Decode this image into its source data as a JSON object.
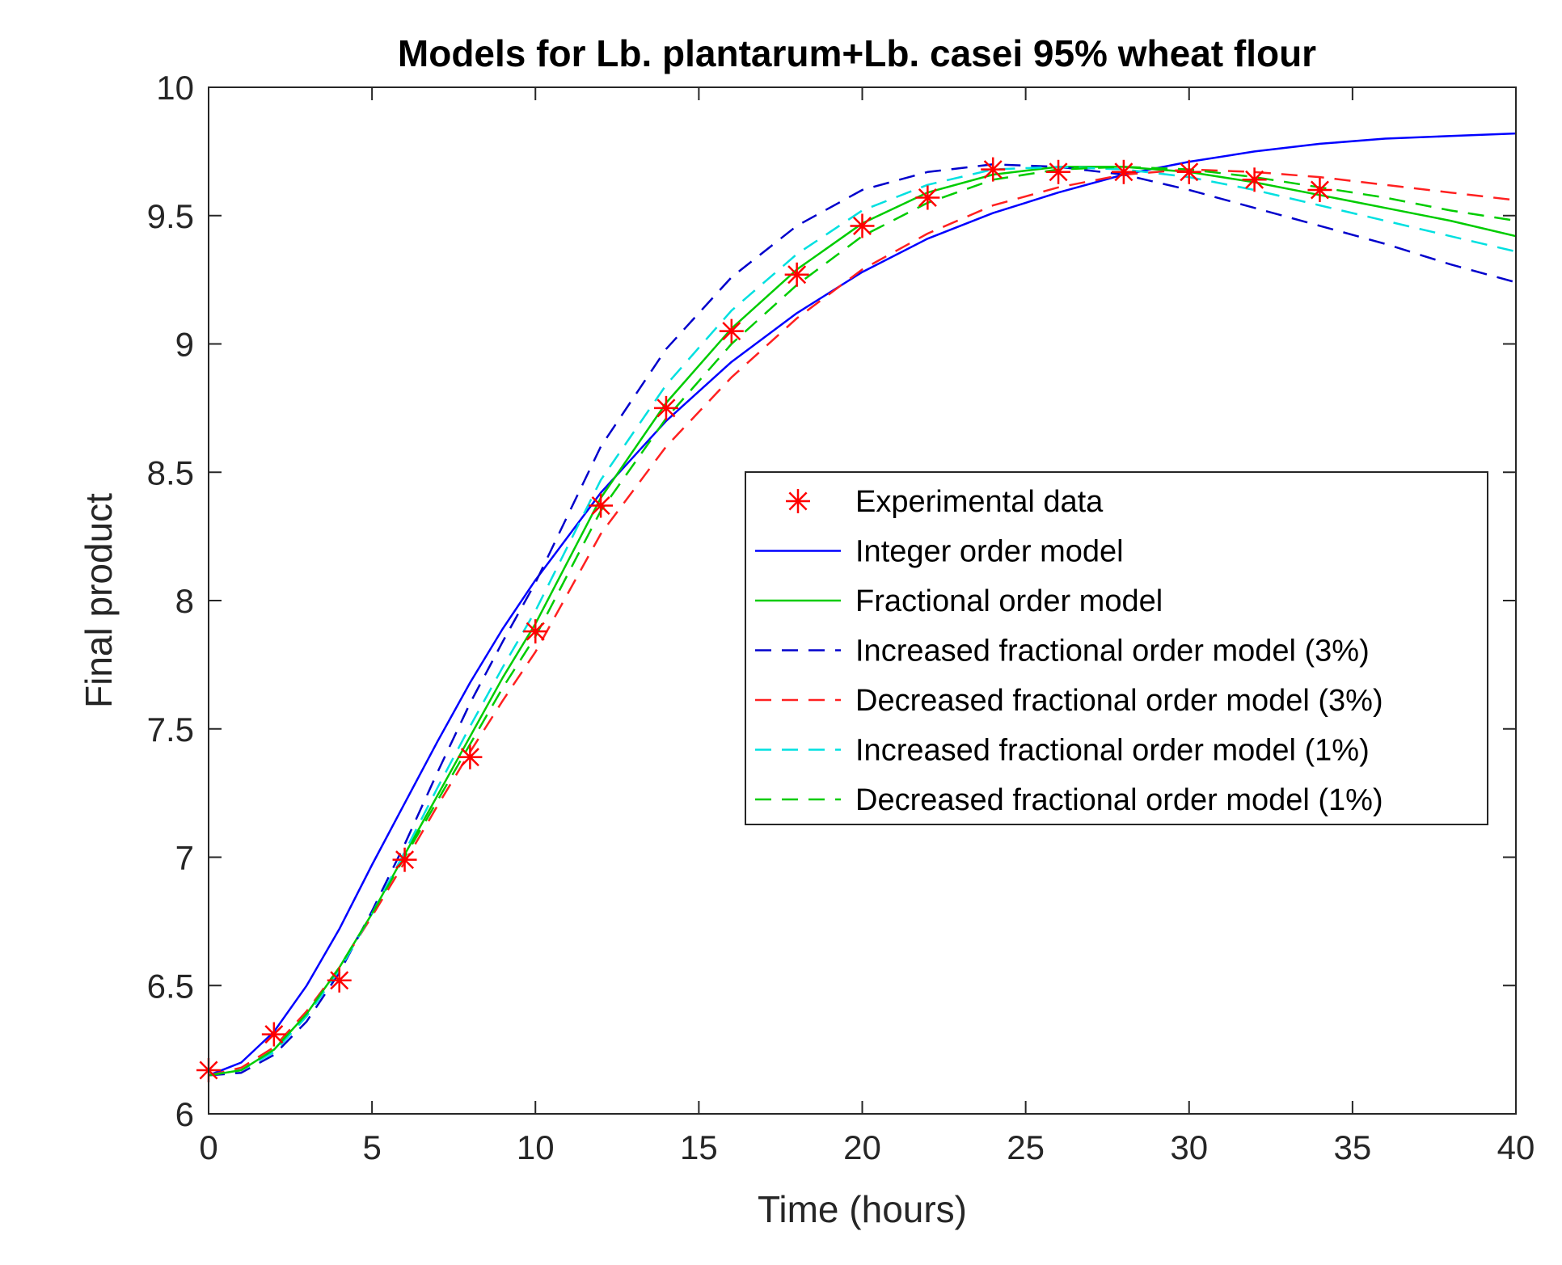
{
  "chart_data": {
    "type": "line",
    "title": "Models for Lb. plantarum+Lb. casei 95% wheat flour",
    "xlabel": "Time (hours)",
    "ylabel": "Final product",
    "xlim": [
      0,
      40
    ],
    "ylim": [
      6,
      10
    ],
    "xticks": [
      0,
      5,
      10,
      15,
      20,
      25,
      30,
      35,
      40
    ],
    "yticks": [
      6,
      6.5,
      7,
      7.5,
      8,
      8.5,
      9,
      9.5,
      10
    ],
    "legend_position": "center-right",
    "series": [
      {
        "name": "Experimental data",
        "style": "markers",
        "marker": "asterisk",
        "color": "#ff0000",
        "x": [
          0,
          2,
          4,
          6,
          8,
          10,
          12,
          14,
          16,
          18,
          20,
          22,
          24,
          26,
          28,
          30,
          32,
          34
        ],
        "y": [
          6.17,
          6.31,
          6.52,
          6.99,
          7.39,
          7.88,
          8.37,
          8.75,
          9.05,
          9.27,
          9.46,
          9.57,
          9.68,
          9.67,
          9.67,
          9.67,
          9.64,
          9.6
        ]
      },
      {
        "name": "Integer order model",
        "style": "solid",
        "color": "#0000ff",
        "x": [
          0,
          1,
          2,
          3,
          4,
          5,
          6,
          7,
          8,
          9,
          10,
          12,
          14,
          16,
          18,
          20,
          22,
          24,
          26,
          28,
          30,
          32,
          34,
          36,
          38,
          40
        ],
        "y": [
          6.15,
          6.2,
          6.32,
          6.5,
          6.72,
          6.97,
          7.21,
          7.45,
          7.68,
          7.89,
          8.08,
          8.42,
          8.7,
          8.93,
          9.12,
          9.28,
          9.41,
          9.51,
          9.59,
          9.66,
          9.71,
          9.75,
          9.78,
          9.8,
          9.81,
          9.82
        ]
      },
      {
        "name": "Fractional order model",
        "style": "solid",
        "color": "#00cc00",
        "x": [
          0,
          1,
          2,
          3,
          4,
          5,
          6,
          7,
          8,
          9,
          10,
          12,
          14,
          16,
          18,
          20,
          22,
          24,
          26,
          28,
          30,
          32,
          34,
          36,
          38,
          40
        ],
        "y": [
          6.15,
          6.17,
          6.25,
          6.39,
          6.57,
          6.78,
          7.01,
          7.24,
          7.47,
          7.7,
          7.91,
          8.4,
          8.77,
          9.06,
          9.29,
          9.47,
          9.59,
          9.66,
          9.69,
          9.69,
          9.67,
          9.63,
          9.58,
          9.53,
          9.48,
          9.42
        ]
      },
      {
        "name": "Increased fractional order model (3%)",
        "style": "dashed",
        "color": "#0000cc",
        "x": [
          0,
          1,
          2,
          3,
          4,
          5,
          6,
          7,
          8,
          9,
          10,
          12,
          14,
          16,
          18,
          20,
          22,
          24,
          26,
          28,
          30,
          32,
          34,
          36,
          38,
          40
        ],
        "y": [
          6.15,
          6.16,
          6.23,
          6.36,
          6.55,
          6.79,
          7.05,
          7.33,
          7.6,
          7.84,
          8.07,
          8.6,
          8.98,
          9.26,
          9.46,
          9.6,
          9.67,
          9.7,
          9.69,
          9.66,
          9.6,
          9.53,
          9.46,
          9.39,
          9.31,
          9.24
        ]
      },
      {
        "name": "Decreased fractional order model (3%)",
        "style": "dashed",
        "color": "#ff2020",
        "x": [
          0,
          1,
          2,
          3,
          4,
          5,
          6,
          7,
          8,
          9,
          10,
          12,
          14,
          16,
          18,
          20,
          22,
          24,
          26,
          28,
          30,
          32,
          34,
          36,
          38,
          40
        ],
        "y": [
          6.15,
          6.18,
          6.26,
          6.4,
          6.57,
          6.77,
          6.98,
          7.2,
          7.41,
          7.61,
          7.8,
          8.26,
          8.6,
          8.87,
          9.1,
          9.29,
          9.43,
          9.54,
          9.61,
          9.66,
          9.68,
          9.67,
          9.65,
          9.62,
          9.59,
          9.56
        ]
      },
      {
        "name": "Increased fractional order model (1%)",
        "style": "dashed",
        "color": "#00e0e0",
        "x": [
          0,
          1,
          2,
          3,
          4,
          5,
          6,
          7,
          8,
          9,
          10,
          12,
          14,
          16,
          18,
          20,
          22,
          24,
          26,
          28,
          30,
          32,
          34,
          36,
          38,
          40
        ],
        "y": [
          6.15,
          6.17,
          6.24,
          6.38,
          6.56,
          6.78,
          7.02,
          7.27,
          7.51,
          7.74,
          7.96,
          8.47,
          8.84,
          9.13,
          9.35,
          9.52,
          9.62,
          9.68,
          9.69,
          9.68,
          9.65,
          9.6,
          9.54,
          9.48,
          9.42,
          9.36
        ]
      },
      {
        "name": "Decreased fractional order model (1%)",
        "style": "dashed",
        "color": "#00cc00",
        "x": [
          0,
          1,
          2,
          3,
          4,
          5,
          6,
          7,
          8,
          9,
          10,
          12,
          14,
          16,
          18,
          20,
          22,
          24,
          26,
          28,
          30,
          32,
          34,
          36,
          38,
          40
        ],
        "y": [
          6.15,
          6.17,
          6.25,
          6.39,
          6.57,
          6.78,
          7.0,
          7.22,
          7.44,
          7.66,
          7.86,
          8.35,
          8.71,
          9.0,
          9.23,
          9.42,
          9.55,
          9.64,
          9.68,
          9.69,
          9.68,
          9.65,
          9.61,
          9.57,
          9.52,
          9.48
        ]
      }
    ]
  }
}
